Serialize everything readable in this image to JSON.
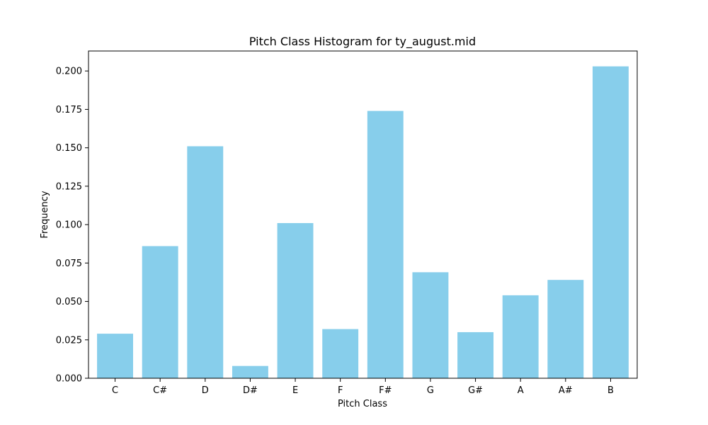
{
  "chart_data": {
    "type": "bar",
    "title": "Pitch Class Histogram for ty_august.mid",
    "xlabel": "Pitch Class",
    "ylabel": "Frequency",
    "categories": [
      "C",
      "C#",
      "D",
      "D#",
      "E",
      "F",
      "F#",
      "G",
      "G#",
      "A",
      "A#",
      "B"
    ],
    "values": [
      0.029,
      0.086,
      0.151,
      0.008,
      0.101,
      0.032,
      0.174,
      0.069,
      0.03,
      0.054,
      0.064,
      0.203
    ],
    "ylim": [
      0,
      0.213
    ],
    "yticks": [
      0.0,
      0.025,
      0.05,
      0.075,
      0.1,
      0.125,
      0.15,
      0.175,
      0.2
    ],
    "ytick_labels": [
      "0.000",
      "0.025",
      "0.050",
      "0.075",
      "0.100",
      "0.125",
      "0.150",
      "0.175",
      "0.200"
    ],
    "grid": false,
    "colors": {
      "bar": "#87ceeb",
      "axis": "#000000",
      "background": "#ffffff"
    }
  }
}
